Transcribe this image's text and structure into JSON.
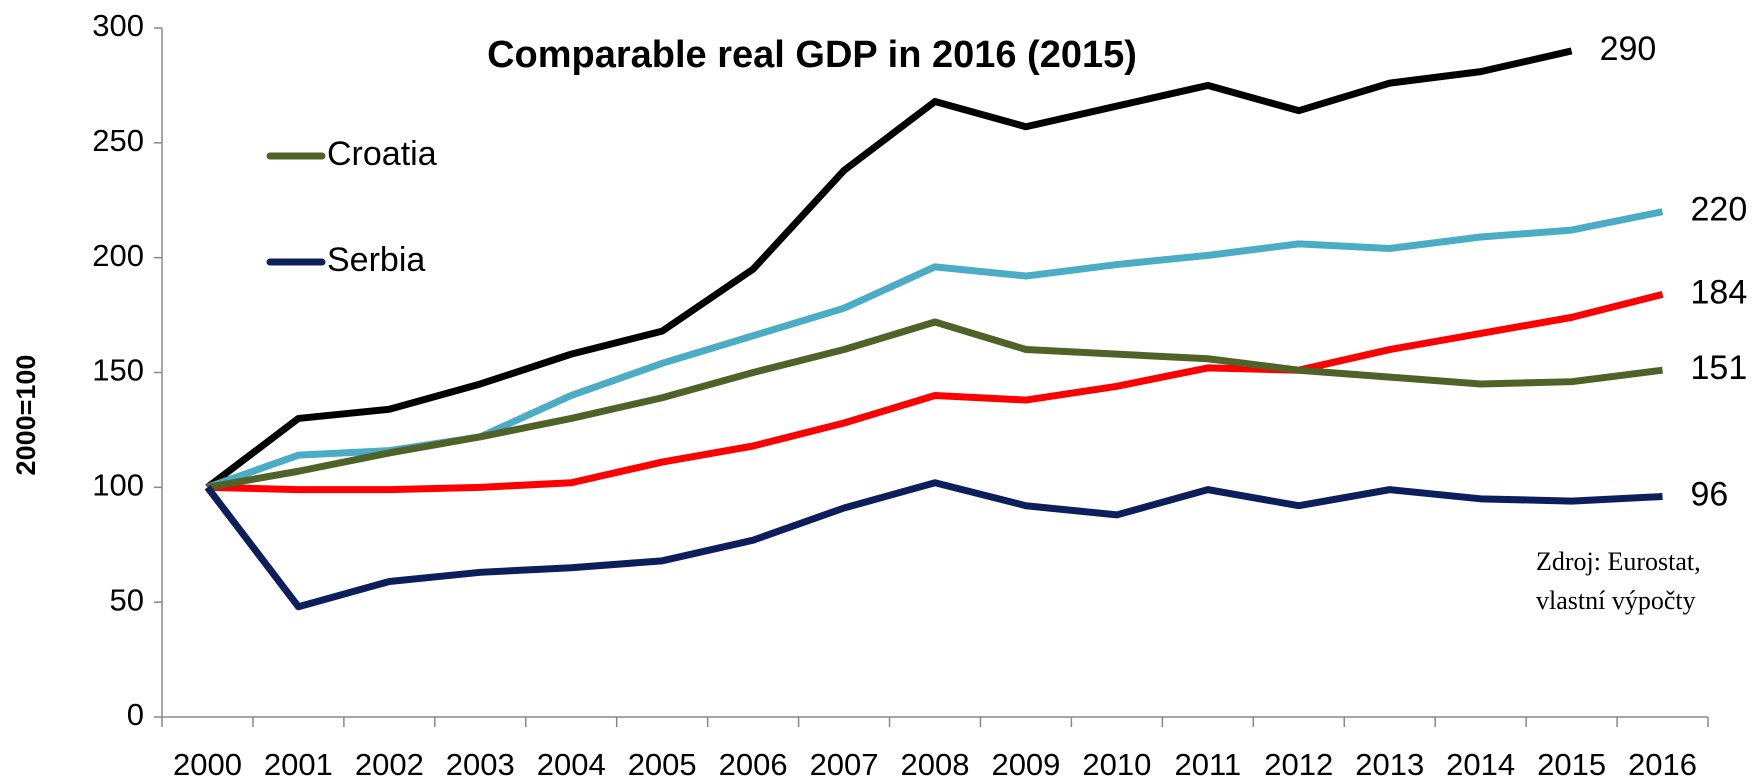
{
  "chart_data": {
    "type": "line",
    "title": "Comparable real GDP in 2016 (2015)",
    "y_label": "2000=100",
    "annotation": [
      "Zdroj: Eurostat,",
      "vlastní výpočty"
    ],
    "categories": [
      "2000",
      "2001",
      "2002",
      "2003",
      "2004",
      "2005",
      "2006",
      "2007",
      "2008",
      "2009",
      "2010",
      "2011",
      "2012",
      "2013",
      "2014",
      "2015",
      "2016"
    ],
    "series": [
      {
        "color": "#000000",
        "values": [
          100,
          130,
          134,
          145,
          158,
          168,
          195,
          238,
          268,
          257,
          266,
          275,
          264,
          276,
          281,
          290,
          null
        ]
      },
      {
        "color": "#4bacc6",
        "values": [
          100,
          114,
          116,
          122,
          140,
          154,
          166,
          178,
          196,
          192,
          197,
          201,
          206,
          204,
          209,
          212,
          220
        ]
      },
      {
        "color": "#ff0000",
        "values": [
          100,
          99,
          99,
          100,
          102,
          111,
          118,
          128,
          140,
          138,
          144,
          152,
          151,
          160,
          167,
          174,
          184
        ]
      },
      {
        "name": "Croatia",
        "color": "#4f6228",
        "values": [
          100,
          107,
          115,
          122,
          130,
          139,
          150,
          160,
          172,
          160,
          158,
          156,
          151,
          148,
          145,
          146,
          151
        ]
      },
      {
        "name": "Serbia",
        "color": "#0c1f5c",
        "values": [
          100,
          48,
          59,
          63,
          65,
          68,
          77,
          91,
          102,
          92,
          88,
          99,
          92,
          99,
          95,
          94,
          96
        ]
      }
    ],
    "ylim": [
      0,
      300
    ],
    "yticks": [
      0,
      50,
      100,
      150,
      200,
      250,
      300
    ],
    "grid": false
  }
}
